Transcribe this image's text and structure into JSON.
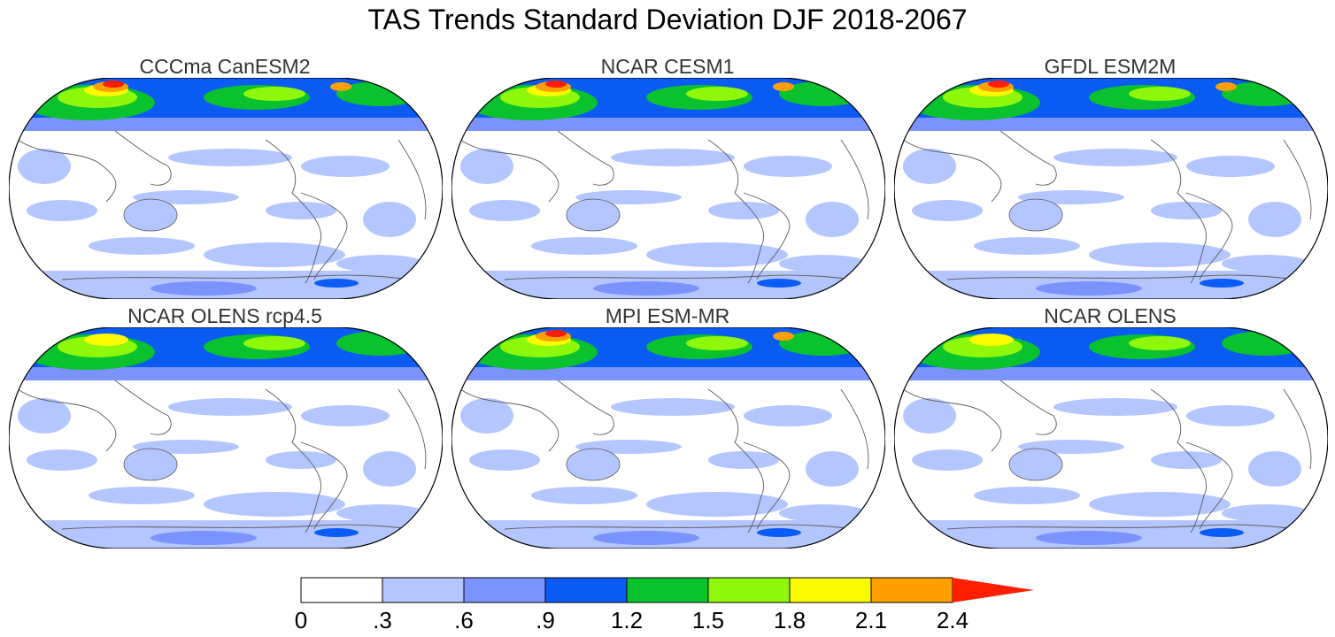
{
  "title": "TAS Trends Standard Deviation DJF 2018-2067",
  "panels": [
    {
      "label": "CCCma CanESM2",
      "has_arctic_red": true
    },
    {
      "label": "NCAR CESM1",
      "has_arctic_red": true
    },
    {
      "label": "GFDL ESM2M",
      "has_arctic_red": true
    },
    {
      "label": "NCAR OLENS rcp4.5",
      "has_arctic_red": false
    },
    {
      "label": "MPI ESM-MR",
      "has_arctic_red": true
    },
    {
      "label": "NCAR OLENS",
      "has_arctic_red": false
    }
  ],
  "colorbar": {
    "labels": [
      "0",
      ".3",
      ".6",
      ".9",
      "1.2",
      "1.5",
      "1.8",
      "2.1",
      "2.4"
    ],
    "colors": [
      "#ffffff",
      "#b4c6ff",
      "#7b93ff",
      "#0a5cf5",
      "#0ac12e",
      "#8ef70a",
      "#fafa00",
      "#ffa000",
      "#ff1e00"
    ]
  },
  "palette": {
    "land_outline": "#5a5a5a"
  }
}
